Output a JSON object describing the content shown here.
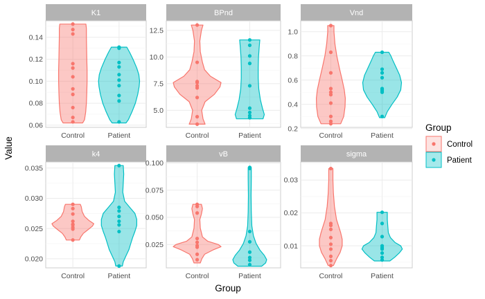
{
  "chart_data": {
    "type": "violin",
    "xlabel": "Group",
    "ylabel": "Value",
    "categories": [
      "Control",
      "Patient"
    ],
    "legend": {
      "title": "Group",
      "position": "right",
      "entries": [
        {
          "label": "Control",
          "color": "#F8766D"
        },
        {
          "label": "Patient",
          "color": "#00BFC4"
        }
      ]
    },
    "panels": [
      {
        "title": "K1",
        "ylim": [
          0.058,
          0.155
        ],
        "yticks": [
          0.06,
          0.08,
          0.1,
          0.12,
          0.14
        ],
        "tick_labels": [
          "0.06",
          "0.08",
          "0.10",
          "0.12",
          "0.14"
        ],
        "series": [
          {
            "name": "Control",
            "points": [
              0.152,
              0.147,
              0.143,
              0.116,
              0.112,
              0.104,
              0.093,
              0.088,
              0.076,
              0.067,
              0.063
            ],
            "profile": [
              [
                0.062,
                0.42
              ],
              [
                0.065,
                0.5
              ],
              [
                0.072,
                0.55
              ],
              [
                0.08,
                0.58
              ],
              [
                0.09,
                0.6
              ],
              [
                0.1,
                0.61
              ],
              [
                0.11,
                0.61
              ],
              [
                0.12,
                0.6
              ],
              [
                0.13,
                0.59
              ],
              [
                0.14,
                0.58
              ],
              [
                0.148,
                0.58
              ],
              [
                0.152,
                0.56
              ]
            ]
          },
          {
            "name": "Patient",
            "points": [
              0.131,
              0.13,
              0.117,
              0.113,
              0.106,
              0.101,
              0.096,
              0.087,
              0.082,
              0.063
            ],
            "profile": [
              [
                0.062,
                0.3
              ],
              [
                0.065,
                0.4
              ],
              [
                0.072,
                0.55
              ],
              [
                0.08,
                0.7
              ],
              [
                0.088,
                0.8
              ],
              [
                0.095,
                0.86
              ],
              [
                0.1,
                0.88
              ],
              [
                0.106,
                0.85
              ],
              [
                0.112,
                0.76
              ],
              [
                0.12,
                0.6
              ],
              [
                0.126,
                0.46
              ],
              [
                0.131,
                0.33
              ]
            ]
          }
        ]
      },
      {
        "title": "BPnd",
        "ylim": [
          3.4,
          13.4
        ],
        "yticks": [
          5.0,
          7.5,
          10.0,
          12.5
        ],
        "tick_labels": [
          "5.0",
          "7.5",
          "10.0",
          "12.5"
        ],
        "series": [
          {
            "name": "Control",
            "points": [
              13.0,
              9.5,
              7.7,
              7.6,
              7.3,
              7.1,
              6.2,
              4.4,
              3.7
            ],
            "profile": [
              [
                3.7,
                0.3
              ],
              [
                4.2,
                0.22
              ],
              [
                5.0,
                0.17
              ],
              [
                5.8,
                0.3
              ],
              [
                6.5,
                0.65
              ],
              [
                7.2,
                0.86
              ],
              [
                7.6,
                0.9
              ],
              [
                8.2,
                0.5
              ],
              [
                8.8,
                0.28
              ],
              [
                9.5,
                0.2
              ],
              [
                10.5,
                0.12
              ],
              [
                11.5,
                0.1
              ],
              [
                12.5,
                0.16
              ],
              [
                13.0,
                0.22
              ]
            ]
          },
          {
            "name": "Patient",
            "points": [
              11.6,
              11.1,
              10.1,
              9.4,
              7.3,
              5.2,
              4.8,
              4.5,
              4.3
            ],
            "profile": [
              [
                4.2,
                0.5
              ],
              [
                4.6,
                0.55
              ],
              [
                5.2,
                0.48
              ],
              [
                6.0,
                0.4
              ],
              [
                7.0,
                0.34
              ],
              [
                8.0,
                0.32
              ],
              [
                9.0,
                0.32
              ],
              [
                10.0,
                0.33
              ],
              [
                11.0,
                0.36
              ],
              [
                11.6,
                0.38
              ]
            ]
          }
        ]
      },
      {
        "title": "Vnd",
        "ylim": [
          0.21,
          1.09
        ],
        "yticks": [
          0.2,
          0.4,
          0.6,
          0.8,
          1.0
        ],
        "tick_labels": [
          "0.2",
          "0.4",
          "0.6",
          "0.8",
          "1.0"
        ],
        "series": [
          {
            "name": "Control",
            "points": [
              1.05,
              0.83,
              0.66,
              0.53,
              0.5,
              0.48,
              0.41,
              0.3,
              0.26,
              0.24
            ],
            "profile": [
              [
                0.24,
                0.38
              ],
              [
                0.3,
                0.5
              ],
              [
                0.38,
                0.55
              ],
              [
                0.45,
                0.56
              ],
              [
                0.52,
                0.52
              ],
              [
                0.6,
                0.44
              ],
              [
                0.7,
                0.33
              ],
              [
                0.8,
                0.23
              ],
              [
                0.9,
                0.16
              ],
              [
                1.0,
                0.12
              ],
              [
                1.05,
                0.12
              ]
            ]
          },
          {
            "name": "Patient",
            "points": [
              0.83,
              0.69,
              0.66,
              0.62,
              0.53,
              0.52,
              0.51,
              0.5,
              0.3
            ],
            "profile": [
              [
                0.29,
                0.1
              ],
              [
                0.34,
                0.2
              ],
              [
                0.4,
                0.38
              ],
              [
                0.46,
                0.58
              ],
              [
                0.52,
                0.72
              ],
              [
                0.58,
                0.75
              ],
              [
                0.64,
                0.68
              ],
              [
                0.7,
                0.55
              ],
              [
                0.76,
                0.42
              ],
              [
                0.8,
                0.34
              ],
              [
                0.83,
                0.26
              ]
            ]
          }
        ]
      },
      {
        "title": "k4",
        "ylim": [
          0.0185,
          0.036
        ],
        "yticks": [
          0.02,
          0.025,
          0.03,
          0.035
        ],
        "tick_labels": [
          "0.020",
          "0.025",
          "0.030",
          "0.035"
        ],
        "series": [
          {
            "name": "Control",
            "points": [
              0.029,
              0.0283,
              0.0274,
              0.0262,
              0.0257,
              0.0256,
              0.0252,
              0.0249,
              0.0231
            ],
            "profile": [
              [
                0.0231,
                0.28
              ],
              [
                0.0236,
                0.34
              ],
              [
                0.0242,
                0.45
              ],
              [
                0.0248,
                0.65
              ],
              [
                0.0254,
                0.84
              ],
              [
                0.0258,
                0.9
              ],
              [
                0.0263,
                0.7
              ],
              [
                0.027,
                0.5
              ],
              [
                0.0278,
                0.4
              ],
              [
                0.0286,
                0.36
              ],
              [
                0.029,
                0.32
              ]
            ]
          },
          {
            "name": "Patient",
            "points": [
              0.0354,
              0.0285,
              0.0279,
              0.027,
              0.0262,
              0.0256,
              0.0245,
              0.0188
            ],
            "profile": [
              [
                0.0188,
                0.14
              ],
              [
                0.0195,
                0.18
              ],
              [
                0.0205,
                0.3
              ],
              [
                0.0215,
                0.42
              ],
              [
                0.0225,
                0.5
              ],
              [
                0.0235,
                0.58
              ],
              [
                0.0245,
                0.68
              ],
              [
                0.0255,
                0.76
              ],
              [
                0.0265,
                0.76
              ],
              [
                0.0275,
                0.68
              ],
              [
                0.0285,
                0.46
              ],
              [
                0.0295,
                0.24
              ],
              [
                0.031,
                0.16
              ],
              [
                0.0325,
                0.18
              ],
              [
                0.034,
                0.2
              ],
              [
                0.0354,
                0.18
              ]
            ]
          }
        ]
      },
      {
        "title": "vB",
        "ylim": [
          0.0035,
          0.101
        ],
        "yticks": [
          0.025,
          0.05,
          0.075,
          0.1
        ],
        "tick_labels": [
          "0.025",
          "0.050",
          "0.075",
          "0.100"
        ],
        "series": [
          {
            "name": "Control",
            "points": [
              0.062,
              0.06,
              0.054,
              0.0305,
              0.027,
              0.024,
              0.0225,
              0.016,
              0.011
            ],
            "profile": [
              [
                0.008,
                0.12
              ],
              [
                0.012,
                0.18
              ],
              [
                0.016,
                0.28
              ],
              [
                0.02,
                0.6
              ],
              [
                0.023,
                0.9
              ],
              [
                0.025,
                0.8
              ],
              [
                0.028,
                0.4
              ],
              [
                0.032,
                0.2
              ],
              [
                0.04,
                0.12
              ],
              [
                0.048,
                0.1
              ],
              [
                0.053,
                0.16
              ],
              [
                0.058,
                0.2
              ],
              [
                0.062,
                0.16
              ]
            ]
          },
          {
            "name": "Patient",
            "points": [
              0.096,
              0.095,
              0.037,
              0.0275,
              0.018,
              0.013,
              0.0105,
              0.0065
            ],
            "profile": [
              [
                0.005,
                0.45
              ],
              [
                0.008,
                0.6
              ],
              [
                0.011,
                0.64
              ],
              [
                0.015,
                0.55
              ],
              [
                0.02,
                0.38
              ],
              [
                0.026,
                0.24
              ],
              [
                0.033,
                0.14
              ],
              [
                0.042,
                0.08
              ],
              [
                0.055,
                0.06
              ],
              [
                0.07,
                0.05
              ],
              [
                0.085,
                0.06
              ],
              [
                0.096,
                0.06
              ]
            ]
          }
        ]
      },
      {
        "title": "sigma",
        "ylim": [
          0.0033,
          0.0355
        ],
        "yticks": [
          0.01,
          0.02,
          0.03
        ],
        "tick_labels": [
          "0.01",
          "0.02",
          "0.03"
        ],
        "series": [
          {
            "name": "Control",
            "points": [
              0.0335,
              0.0168,
              0.0162,
              0.015,
              0.0125,
              0.0105,
              0.009,
              0.0068,
              0.0055,
              0.004
            ],
            "profile": [
              [
                0.004,
                0.1
              ],
              [
                0.006,
                0.22
              ],
              [
                0.008,
                0.36
              ],
              [
                0.01,
                0.44
              ],
              [
                0.012,
                0.44
              ],
              [
                0.014,
                0.38
              ],
              [
                0.016,
                0.3
              ],
              [
                0.018,
                0.22
              ],
              [
                0.022,
                0.14
              ],
              [
                0.026,
                0.1
              ],
              [
                0.03,
                0.08
              ],
              [
                0.0335,
                0.08
              ]
            ]
          },
          {
            "name": "Patient",
            "points": [
              0.0202,
              0.0168,
              0.0128,
              0.01,
              0.0095,
              0.0092,
              0.009,
              0.0078,
              0.0065,
              0.0057
            ],
            "profile": [
              [
                0.0054,
                0.3
              ],
              [
                0.0065,
                0.48
              ],
              [
                0.0078,
                0.66
              ],
              [
                0.009,
                0.78
              ],
              [
                0.01,
                0.72
              ],
              [
                0.011,
                0.5
              ],
              [
                0.0125,
                0.32
              ],
              [
                0.014,
                0.24
              ],
              [
                0.016,
                0.22
              ],
              [
                0.018,
                0.2
              ],
              [
                0.0202,
                0.2
              ]
            ]
          }
        ]
      }
    ]
  }
}
